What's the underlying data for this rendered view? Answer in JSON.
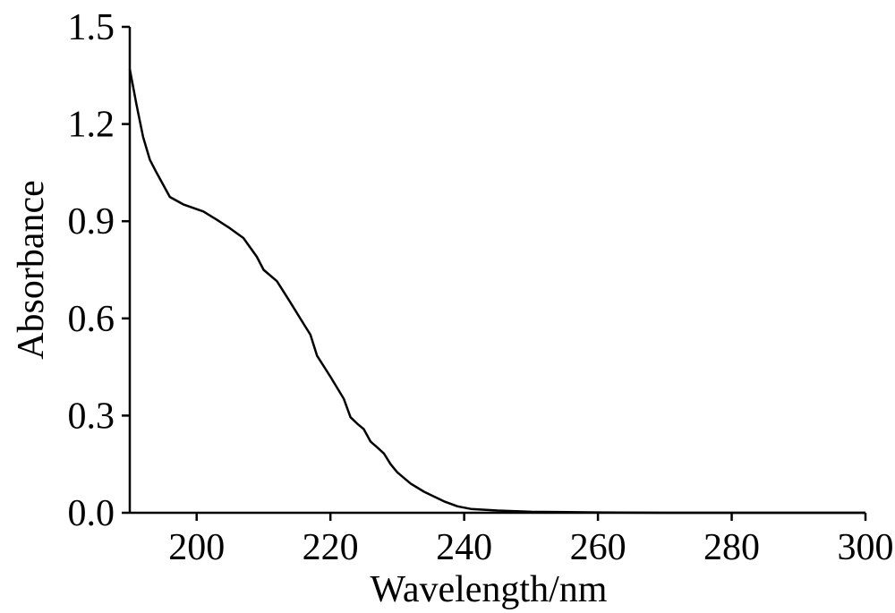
{
  "chart_data": {
    "type": "line",
    "xlabel": "Wavelength/nm",
    "ylabel": "Absorbance",
    "xlim": [
      190,
      300
    ],
    "ylim": [
      0,
      1.5
    ],
    "x_ticks": [
      200,
      220,
      240,
      260,
      280,
      300
    ],
    "y_ticks": [
      0.0,
      0.3,
      0.6,
      0.9,
      1.2,
      1.5
    ],
    "y_tick_labels": [
      "0.0",
      "0.3",
      "0.6",
      "0.9",
      "1.2",
      "1.5"
    ],
    "grid": false,
    "legend": "none",
    "series": [
      {
        "color": "#000000",
        "x": [
          190,
          191,
          192,
          193,
          194,
          196,
          198,
          201,
          203,
          205,
          207,
          209,
          210,
          212,
          214,
          216,
          217,
          218,
          220,
          222,
          223,
          224,
          225,
          226,
          227,
          228,
          229,
          230,
          232,
          234,
          235,
          237,
          239,
          241,
          245,
          250,
          260,
          270,
          280,
          290,
          300
        ],
        "y": [
          1.37,
          1.26,
          1.16,
          1.09,
          1.05,
          0.975,
          0.952,
          0.93,
          0.905,
          0.878,
          0.848,
          0.79,
          0.75,
          0.715,
          0.65,
          0.583,
          0.55,
          0.485,
          0.42,
          0.352,
          0.295,
          0.275,
          0.258,
          0.22,
          0.202,
          0.183,
          0.15,
          0.125,
          0.09,
          0.065,
          0.055,
          0.035,
          0.02,
          0.012,
          0.007,
          0.003,
          0.001,
          0.0,
          0.0,
          0.0,
          0.0
        ]
      }
    ]
  }
}
